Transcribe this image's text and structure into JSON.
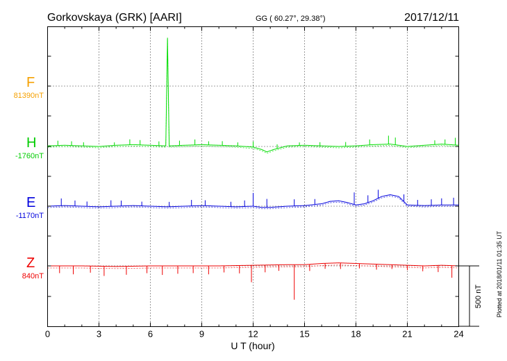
{
  "header": {
    "station": "Gorkovskaya (GRK)  [AARI]",
    "coords": "GG ( 60.27°,  29.38°)",
    "date": "2017/12/11"
  },
  "footer": {
    "plotted": "Plotted at 2018/01/11 01:35 UT"
  },
  "scale_bar": {
    "label": "500 nT",
    "value_nT": 500
  },
  "colors": {
    "F": "#f5a000",
    "H": "#00dd00",
    "E": "#0000dd",
    "Z": "#ee0000",
    "axis": "#000000"
  },
  "chart_data": {
    "type": "line",
    "xlabel": "U T (hour)",
    "xlim": [
      0,
      24
    ],
    "x_ticks": [
      0,
      3,
      6,
      9,
      12,
      15,
      18,
      21,
      24
    ],
    "grid": true,
    "scale_nT": 500,
    "series": [
      {
        "name": "F",
        "baseline_label": "81390nT",
        "color": "#f5a000",
        "values": []
      },
      {
        "name": "H",
        "baseline_label": "-1760nT",
        "color": "#00dd00",
        "x": [
          0,
          1,
          2,
          3,
          4,
          5,
          6,
          6.9,
          7.0,
          7.1,
          8,
          9,
          10,
          11,
          12,
          12.5,
          12.8,
          13.2,
          14,
          15,
          16,
          17,
          18,
          19,
          20,
          20.5,
          21,
          22,
          23,
          24
        ],
        "values": [
          5,
          10,
          5,
          0,
          10,
          15,
          10,
          5,
          900,
          5,
          10,
          15,
          10,
          5,
          -5,
          -25,
          -45,
          -25,
          5,
          10,
          5,
          0,
          5,
          15,
          20,
          10,
          0,
          10,
          20,
          10
        ],
        "spikes": [
          [
            0.6,
            40
          ],
          [
            1.4,
            35
          ],
          [
            2.1,
            30
          ],
          [
            3.9,
            25
          ],
          [
            4.8,
            45
          ],
          [
            5.4,
            40
          ],
          [
            6.5,
            35
          ],
          [
            7.7,
            40
          ],
          [
            8.6,
            45
          ],
          [
            9.4,
            30
          ],
          [
            10.2,
            35
          ],
          [
            11.1,
            30
          ],
          [
            12.0,
            45
          ],
          [
            13.4,
            35
          ],
          [
            14.7,
            25
          ],
          [
            15.9,
            30
          ],
          [
            17.4,
            35
          ],
          [
            18.8,
            45
          ],
          [
            19.9,
            70
          ],
          [
            20.3,
            60
          ],
          [
            22.6,
            35
          ],
          [
            23.2,
            40
          ],
          [
            23.8,
            60
          ]
        ]
      },
      {
        "name": "E",
        "baseline_label": "-1170nT",
        "color": "#0000dd",
        "x": [
          0,
          1,
          2,
          3,
          4,
          5,
          6,
          7,
          8,
          9,
          10,
          11,
          12,
          12.5,
          13,
          14,
          15,
          16,
          16.5,
          17,
          17.5,
          18,
          18.5,
          19,
          19.5,
          20,
          20.5,
          21,
          22,
          23,
          24
        ],
        "values": [
          0,
          5,
          0,
          -5,
          0,
          5,
          0,
          -5,
          0,
          5,
          0,
          -5,
          0,
          -10,
          -10,
          0,
          5,
          20,
          40,
          45,
          30,
          10,
          20,
          45,
          80,
          95,
          80,
          10,
          5,
          10,
          10
        ],
        "spikes": [
          [
            0.8,
            60
          ],
          [
            1.6,
            45
          ],
          [
            2.3,
            40
          ],
          [
            3.7,
            50
          ],
          [
            4.3,
            45
          ],
          [
            5.5,
            35
          ],
          [
            7.1,
            40
          ],
          [
            8.4,
            50
          ],
          [
            9.2,
            45
          ],
          [
            10.7,
            40
          ],
          [
            11.5,
            50
          ],
          [
            12.0,
            110
          ],
          [
            12.8,
            70
          ],
          [
            14.4,
            55
          ],
          [
            15.6,
            45
          ],
          [
            17.9,
            100
          ],
          [
            18.7,
            60
          ],
          [
            19.3,
            70
          ],
          [
            20.8,
            60
          ],
          [
            21.6,
            45
          ],
          [
            22.4,
            50
          ],
          [
            23.0,
            55
          ],
          [
            23.7,
            60
          ]
        ]
      },
      {
        "name": "Z",
        "baseline_label": "840nT",
        "color": "#ee0000",
        "x": [
          0,
          2,
          4,
          6,
          8,
          10,
          12,
          14,
          15,
          16,
          17,
          18,
          19,
          20,
          21,
          22,
          23,
          24
        ],
        "values": [
          0,
          0,
          -5,
          0,
          0,
          0,
          5,
          10,
          10,
          20,
          25,
          20,
          15,
          10,
          5,
          0,
          5,
          0
        ],
        "spikes": [
          [
            0.7,
            -60
          ],
          [
            1.5,
            -70
          ],
          [
            2.5,
            -55
          ],
          [
            3.3,
            -80
          ],
          [
            4.6,
            -70
          ],
          [
            5.8,
            -60
          ],
          [
            6.7,
            -75
          ],
          [
            7.6,
            -65
          ],
          [
            8.5,
            -60
          ],
          [
            9.4,
            -70
          ],
          [
            10.3,
            -55
          ],
          [
            11.2,
            -65
          ],
          [
            11.9,
            -140
          ],
          [
            12.7,
            -60
          ],
          [
            13.5,
            -50
          ],
          [
            14.4,
            -290
          ],
          [
            15.3,
            -55
          ],
          [
            16.2,
            -45
          ],
          [
            17.1,
            -50
          ],
          [
            18.2,
            -40
          ],
          [
            19.2,
            -45
          ],
          [
            20.1,
            -35
          ],
          [
            21.0,
            -40
          ],
          [
            21.9,
            -45
          ],
          [
            22.8,
            -55
          ],
          [
            23.6,
            -100
          ]
        ]
      }
    ]
  }
}
